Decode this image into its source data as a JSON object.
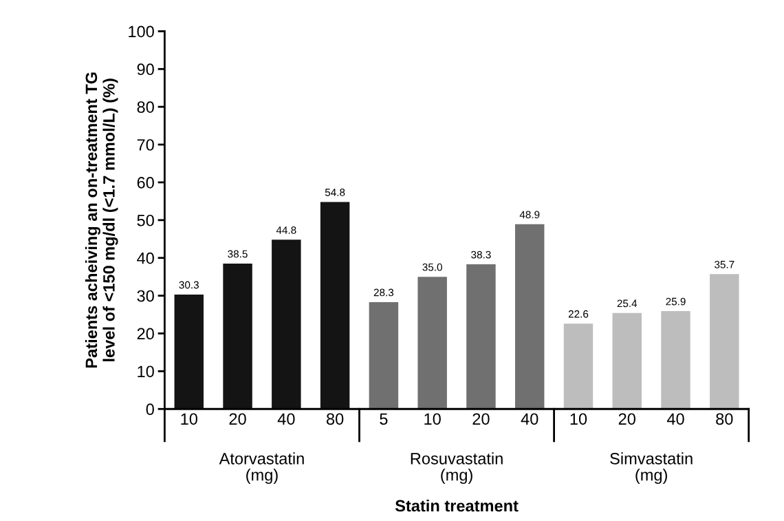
{
  "chart_data": {
    "type": "bar",
    "xlabel": "Statin treatment",
    "ylabel": "Patients acheiving an on-treatment TG\nlevel of <150 mg/dl (<1.7 mmol/L) (%)",
    "categories": [
      "10",
      "20",
      "40",
      "80",
      "5",
      "10",
      "20",
      "40",
      "10",
      "20",
      "40",
      "80"
    ],
    "series": [
      {
        "name": "Atorvastatin\n(mg)",
        "color": "#141414",
        "values": [
          30.3,
          38.5,
          44.8,
          54.8,
          null,
          null,
          null,
          null,
          null,
          null,
          null,
          null
        ]
      },
      {
        "name": "Rosuvastatin\n(mg)",
        "color": "#707070",
        "values": [
          null,
          null,
          null,
          null,
          28.3,
          35.0,
          38.3,
          48.9,
          null,
          null,
          null,
          null
        ]
      },
      {
        "name": "Simvastatin\n(mg)",
        "color": "#bdbdbd",
        "values": [
          null,
          null,
          null,
          null,
          null,
          null,
          null,
          null,
          22.6,
          25.4,
          25.9,
          35.7
        ]
      }
    ],
    "value_labels": [
      "30.3",
      "38.5",
      "44.8",
      "54.8",
      "28.3",
      "35.0",
      "38.3",
      "48.9",
      "22.6",
      "25.4",
      "25.9",
      "35.7"
    ],
    "ylim": [
      0,
      100
    ],
    "yticks": [
      0,
      10,
      20,
      30,
      40,
      50,
      60,
      70,
      80,
      90,
      100
    ],
    "grid": false,
    "legend": false
  }
}
